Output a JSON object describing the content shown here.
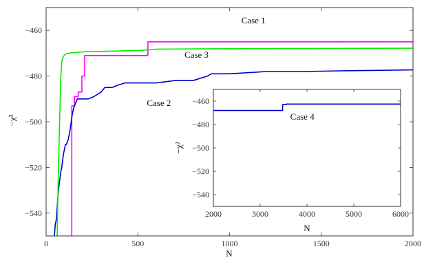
{
  "chart_data": [
    {
      "type": "line",
      "xlabel": "N",
      "ylabel": "−χ²",
      "xlim": [
        0,
        2000
      ],
      "ylim": [
        -550,
        -450
      ],
      "xticks": [
        0,
        500,
        1000,
        1500,
        2000
      ],
      "yticks": [
        -540,
        -520,
        -500,
        -480,
        -460
      ],
      "grid": false,
      "legend": "none",
      "series": [
        {
          "name": "Case 1",
          "color": "#ff00ff",
          "x": [
            140,
            140,
            155,
            155,
            175,
            175,
            195,
            195,
            210,
            210,
            555,
            555,
            2000
          ],
          "y": [
            -550,
            -493,
            -493,
            -489,
            -489,
            -487,
            -487,
            -480,
            -480,
            -471,
            -471,
            -465,
            -465
          ]
        },
        {
          "name": "Case 2",
          "color": "#0000cc",
          "x": [
            45,
            50,
            55,
            60,
            65,
            70,
            75,
            80,
            85,
            90,
            95,
            100,
            105,
            110,
            115,
            120,
            125,
            130,
            135,
            140,
            145,
            150,
            160,
            170,
            190,
            210,
            230,
            260,
            300,
            320,
            360,
            390,
            430,
            470,
            500,
            600,
            700,
            800,
            880,
            900,
            1000,
            1200,
            1400,
            1600,
            1800,
            2000
          ],
          "y": [
            -550,
            -545,
            -543,
            -538,
            -532,
            -528,
            -525,
            -522,
            -520,
            -517,
            -514,
            -512,
            -510,
            -510,
            -509,
            -508,
            -506,
            -504,
            -501,
            -498,
            -496,
            -494,
            -492,
            -490,
            -490,
            -490,
            -490,
            -489,
            -487,
            -485,
            -485,
            -484,
            -483,
            -483,
            -483,
            -483,
            -482,
            -482,
            -480,
            -479,
            -479,
            -478,
            -478,
            -477.7,
            -477.5,
            -477.3
          ]
        },
        {
          "name": "Case 3",
          "color": "#00ee00",
          "x": [
            60,
            65,
            70,
            75,
            80,
            85,
            90,
            100,
            110,
            130,
            160,
            200,
            300,
            400,
            500,
            560,
            600,
            800,
            1000,
            1500,
            2000
          ],
          "y": [
            -550,
            -530,
            -510,
            -495,
            -481,
            -474,
            -472,
            -470.8,
            -470.2,
            -469.9,
            -469.7,
            -469.4,
            -469.2,
            -469,
            -468.8,
            -468.5,
            -468.2,
            -468.1,
            -468,
            -467.9,
            -467.8
          ]
        }
      ],
      "annotations": [
        {
          "text": "Case 1",
          "x": 1130,
          "y": -457
        },
        {
          "text": "Case 3",
          "x": 820,
          "y": -472
        },
        {
          "text": "Case 2",
          "x": 615,
          "y": -493
        }
      ]
    },
    {
      "type": "line",
      "xlabel": "N",
      "ylabel": "−χ²",
      "xlim": [
        2000,
        6000
      ],
      "ylim": [
        -550,
        -450
      ],
      "xticks": [
        2000,
        3000,
        4000,
        5000,
        6000
      ],
      "yticks": [
        -540,
        -520,
        -500,
        -480,
        -460
      ],
      "grid": false,
      "legend": "none",
      "series": [
        {
          "name": "Case 4",
          "color": "#0000cc",
          "x": [
            2000,
            3480,
            3480,
            3560,
            3560,
            6000
          ],
          "y": [
            -468,
            -468,
            -463,
            -463,
            -462.5,
            -462.5
          ]
        }
      ],
      "annotations": [
        {
          "text": "Case 4",
          "x": 3900,
          "y": -476
        }
      ]
    }
  ]
}
